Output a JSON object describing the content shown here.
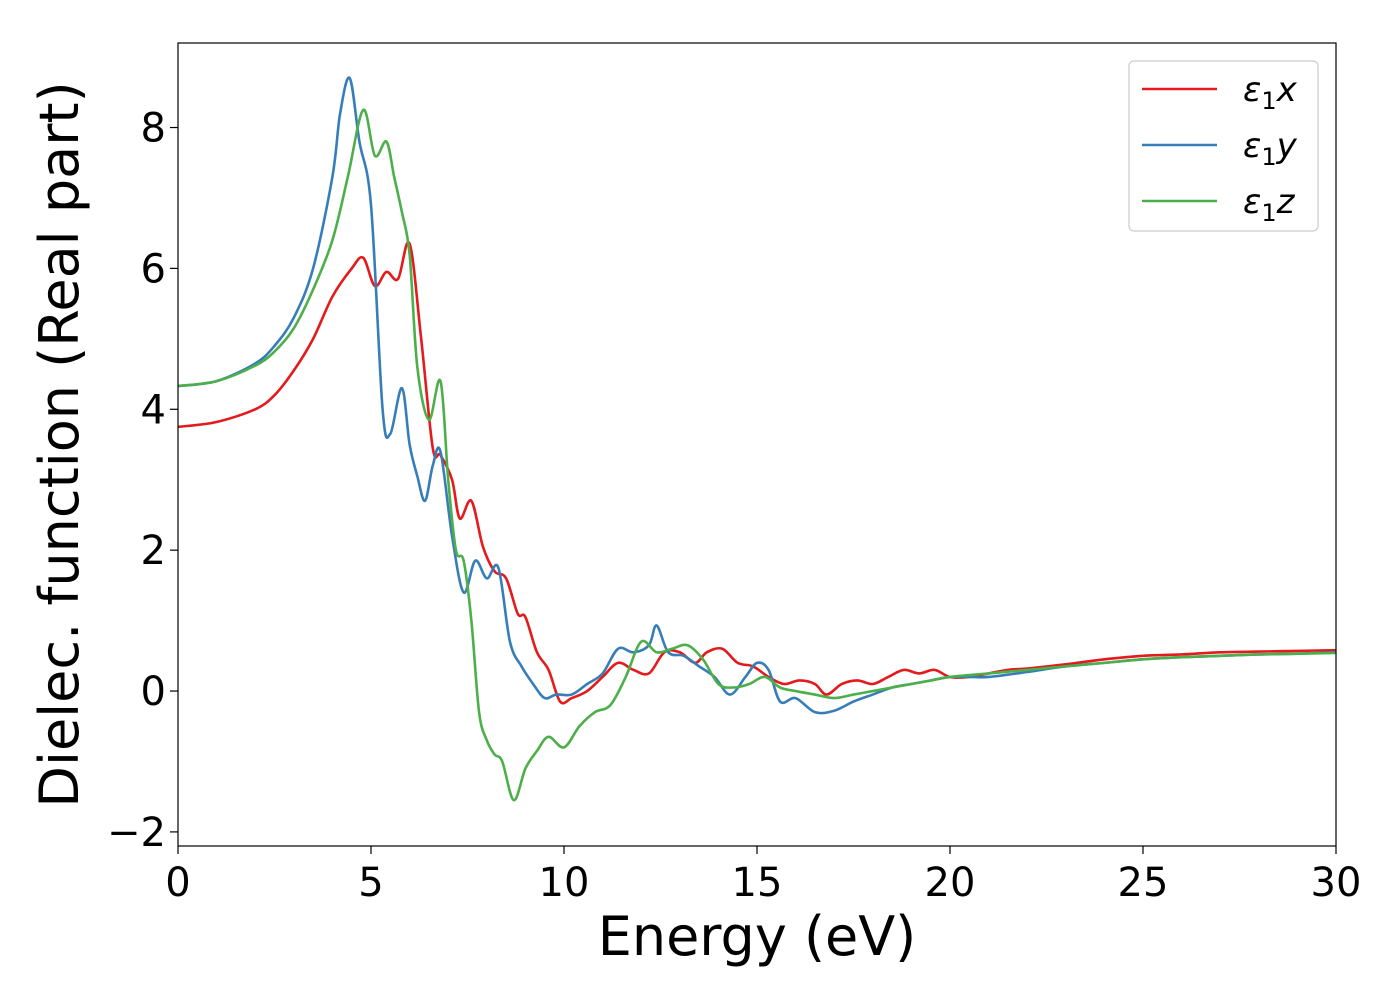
{
  "chart_data": {
    "type": "line",
    "xlabel": "Energy (eV)",
    "ylabel": "Dielec. function (Real part)",
    "xlim": [
      0,
      30
    ],
    "ylim": [
      -2.2,
      9.2
    ],
    "xticks": [
      0,
      5,
      10,
      15,
      20,
      25,
      30
    ],
    "yticks": [
      -2,
      0,
      2,
      4,
      6,
      8
    ],
    "xtick_labels": [
      "0",
      "5",
      "10",
      "15",
      "20",
      "25",
      "30"
    ],
    "ytick_labels": [
      "−2",
      "0",
      "2",
      "4",
      "6",
      "8"
    ],
    "grid": false,
    "legend_position": "top-right",
    "series": [
      {
        "name": "ε1x",
        "symbol": "ε",
        "subscript": "1",
        "suffix": "x",
        "color": "#e41a1c",
        "x": [
          0,
          1,
          2,
          2.5,
          3,
          3.5,
          4,
          4.5,
          4.8,
          5.1,
          5.4,
          5.7,
          6.0,
          6.3,
          6.6,
          6.8,
          7.1,
          7.3,
          7.6,
          7.9,
          8.2,
          8.5,
          8.8,
          9.0,
          9.3,
          9.6,
          9.9,
          10.2,
          10.6,
          11,
          11.4,
          11.8,
          12.2,
          12.6,
          13,
          13.4,
          13.7,
          14.1,
          14.5,
          14.9,
          15.3,
          15.7,
          16.1,
          16.5,
          16.8,
          17.2,
          17.6,
          18.0,
          18.4,
          18.8,
          19.2,
          19.6,
          20.0,
          20.5,
          21,
          21.5,
          22,
          23,
          24,
          25,
          26,
          27,
          28,
          29,
          30
        ],
        "y": [
          3.75,
          3.82,
          4.0,
          4.2,
          4.55,
          5.0,
          5.6,
          6.0,
          6.15,
          5.75,
          5.95,
          5.85,
          6.35,
          5.0,
          3.45,
          3.35,
          3.0,
          2.45,
          2.7,
          2.05,
          1.7,
          1.6,
          1.1,
          1.05,
          0.55,
          0.3,
          -0.15,
          -0.1,
          0.0,
          0.2,
          0.4,
          0.3,
          0.25,
          0.55,
          0.55,
          0.4,
          0.55,
          0.6,
          0.4,
          0.35,
          0.2,
          0.1,
          0.15,
          0.1,
          -0.05,
          0.1,
          0.15,
          0.1,
          0.2,
          0.3,
          0.25,
          0.3,
          0.2,
          0.2,
          0.25,
          0.3,
          0.32,
          0.38,
          0.45,
          0.5,
          0.52,
          0.55,
          0.56,
          0.57,
          0.58
        ]
      },
      {
        "name": "ε1y",
        "symbol": "ε",
        "subscript": "1",
        "suffix": "y",
        "color": "#377eb8",
        "x": [
          0,
          1,
          2,
          2.5,
          3,
          3.5,
          4.0,
          4.2,
          4.45,
          4.7,
          5.0,
          5.3,
          5.5,
          5.8,
          6.0,
          6.2,
          6.4,
          6.6,
          6.8,
          7.1,
          7.4,
          7.7,
          8.0,
          8.3,
          8.6,
          8.9,
          9.2,
          9.5,
          9.8,
          10.2,
          10.6,
          11,
          11.4,
          11.8,
          12.2,
          12.4,
          12.7,
          13.1,
          13.5,
          13.9,
          14.3,
          14.7,
          15.0,
          15.3,
          15.6,
          16.0,
          16.5,
          17,
          17.5,
          18,
          18.5,
          19,
          19.5,
          20,
          20.5,
          21,
          22,
          23,
          24,
          25,
          26,
          27,
          28,
          29,
          30
        ],
        "y": [
          4.33,
          4.4,
          4.65,
          4.9,
          5.3,
          6.0,
          7.3,
          8.2,
          8.7,
          7.8,
          6.9,
          4.0,
          3.65,
          4.3,
          3.5,
          3.05,
          2.7,
          3.2,
          3.4,
          2.2,
          1.4,
          1.85,
          1.6,
          1.75,
          0.7,
          0.35,
          0.1,
          -0.1,
          -0.05,
          -0.05,
          0.1,
          0.25,
          0.6,
          0.55,
          0.65,
          0.93,
          0.55,
          0.5,
          0.35,
          0.2,
          -0.05,
          0.2,
          0.4,
          0.3,
          -0.15,
          -0.1,
          -0.3,
          -0.28,
          -0.15,
          -0.05,
          0.05,
          0.1,
          0.15,
          0.2,
          0.2,
          0.2,
          0.27,
          0.35,
          0.4,
          0.45,
          0.48,
          0.5,
          0.52,
          0.53,
          0.55
        ]
      },
      {
        "name": "ε1z",
        "symbol": "ε",
        "subscript": "1",
        "suffix": "z",
        "color": "#4daf4a",
        "x": [
          0,
          1,
          2,
          2.5,
          3,
          3.5,
          4.0,
          4.4,
          4.8,
          5.1,
          5.4,
          5.6,
          5.8,
          6.0,
          6.2,
          6.5,
          6.8,
          7.0,
          7.2,
          7.4,
          7.6,
          7.8,
          8.0,
          8.2,
          8.4,
          8.7,
          9.0,
          9.3,
          9.6,
          10.0,
          10.4,
          10.8,
          11.2,
          11.6,
          12.0,
          12.4,
          12.8,
          13.2,
          13.6,
          14.0,
          14.4,
          14.8,
          15.2,
          15.6,
          16,
          16.5,
          17,
          17.5,
          18,
          18.5,
          19,
          19.5,
          20,
          21,
          22,
          23,
          24,
          25,
          26,
          27,
          28,
          29,
          30
        ],
        "y": [
          4.33,
          4.4,
          4.62,
          4.82,
          5.15,
          5.7,
          6.4,
          7.3,
          8.25,
          7.6,
          7.8,
          7.3,
          6.8,
          6.2,
          4.6,
          3.85,
          4.4,
          3.0,
          2.0,
          1.85,
          1.0,
          -0.3,
          -0.7,
          -0.9,
          -1.0,
          -1.55,
          -1.1,
          -0.85,
          -0.65,
          -0.8,
          -0.5,
          -0.3,
          -0.2,
          0.2,
          0.7,
          0.55,
          0.6,
          0.65,
          0.45,
          0.1,
          0.05,
          0.1,
          0.2,
          0.05,
          0.0,
          -0.05,
          -0.1,
          -0.05,
          0.0,
          0.05,
          0.1,
          0.15,
          0.2,
          0.25,
          0.3,
          0.35,
          0.4,
          0.45,
          0.48,
          0.5,
          0.52,
          0.53,
          0.54
        ]
      }
    ]
  }
}
